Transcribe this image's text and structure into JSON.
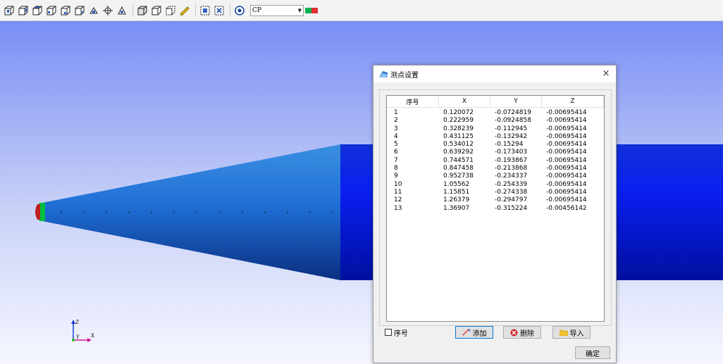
{
  "toolbar": {
    "buttons": [
      "view-iso-1-icon",
      "view-iso-2-icon",
      "view-iso-3-icon",
      "view-iso-4-icon",
      "view-iso-5-icon",
      "view-iso-6-icon",
      "view-front-icon",
      "view-center-icon",
      "view-axis-icon",
      "box-solid-icon",
      "box-wire-icon",
      "box-transparent-icon",
      "ruler-icon",
      "select-region-icon",
      "select-grid-icon",
      "colormap-icon"
    ],
    "field_select": "CP",
    "swatch_colors": [
      "#00b050",
      "#e03030"
    ]
  },
  "dialog": {
    "title": "测点设置",
    "close_label": "×",
    "columns": [
      "序号",
      "X",
      "Y",
      "Z"
    ],
    "rows": [
      [
        "1",
        "0.120072",
        "-0.0724819",
        "-0.00695414"
      ],
      [
        "2",
        "0.222959",
        "-0.0924858",
        "-0.00695414"
      ],
      [
        "3",
        "0.328239",
        "-0.112945",
        "-0.00695414"
      ],
      [
        "4",
        "0.431125",
        "-0.132942",
        "-0.00695414"
      ],
      [
        "5",
        "0.534012",
        "-0.15294",
        "-0.00695414"
      ],
      [
        "6",
        "0.639292",
        "-0.173403",
        "-0.00695414"
      ],
      [
        "7",
        "0.744571",
        "-0.193867",
        "-0.00695414"
      ],
      [
        "8",
        "0.847458",
        "-0.213868",
        "-0.00695414"
      ],
      [
        "9",
        "0.952738",
        "-0.234337",
        "-0.00695414"
      ],
      [
        "10",
        "1.05562",
        "-0.254339",
        "-0.00695414"
      ],
      [
        "11",
        "1.15851",
        "-0.274338",
        "-0.00695414"
      ],
      [
        "12",
        "1.26379",
        "-0.294797",
        "-0.00695414"
      ],
      [
        "13",
        "1.36907",
        "-0.315224",
        "-0.00456142"
      ]
    ],
    "checkbox_label": "序号",
    "add_label": "添加",
    "delete_label": "删除",
    "import_label": "导入",
    "confirm_label": "确定"
  },
  "axes": {
    "z_label": "Z",
    "y_label": "Y",
    "x_label": "X"
  }
}
